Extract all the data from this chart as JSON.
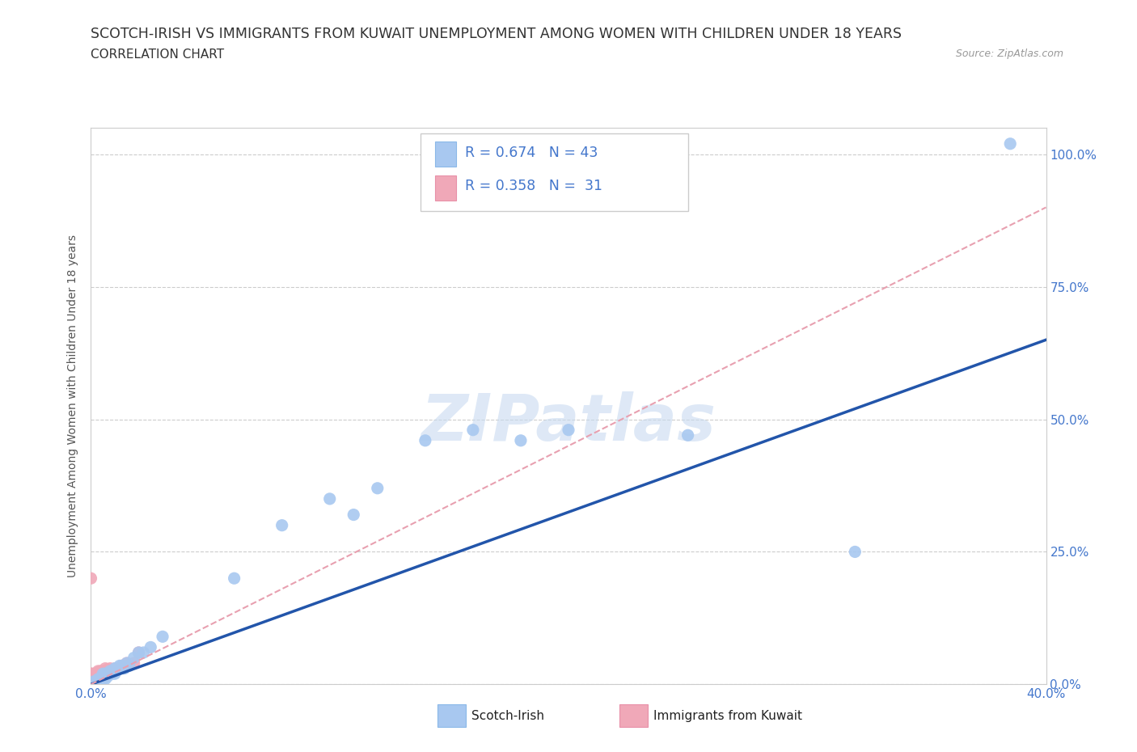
{
  "title_line1": "SCOTCH-IRISH VS IMMIGRANTS FROM KUWAIT UNEMPLOYMENT AMONG WOMEN WITH CHILDREN UNDER 18 YEARS",
  "title_line2": "CORRELATION CHART",
  "source": "Source: ZipAtlas.com",
  "ylabel": "Unemployment Among Women with Children Under 18 years",
  "watermark": "ZIPatlas",
  "xlim": [
    0.0,
    0.4
  ],
  "ylim": [
    0.0,
    1.05
  ],
  "y_tick_positions": [
    0.0,
    0.25,
    0.5,
    0.75,
    1.0
  ],
  "y_tick_labels": [
    "0.0%",
    "25.0%",
    "50.0%",
    "75.0%",
    "100.0%"
  ],
  "x_tick_positions": [
    0.0,
    0.05,
    0.1,
    0.15,
    0.2,
    0.25,
    0.3,
    0.35,
    0.4
  ],
  "x_tick_labels": [
    "0.0%",
    "",
    "",
    "",
    "",
    "",
    "",
    "",
    "40.0%"
  ],
  "scotch_irish_color": "#a8c8f0",
  "kuwait_color": "#f0a8b8",
  "trend_color_scotch": "#2255aa",
  "trend_color_kuwait": "#e8a0b0",
  "grid_color": "#cccccc",
  "background_color": "#ffffff",
  "tick_color": "#4477cc",
  "title_fontsize": 12.5,
  "subtitle_fontsize": 11,
  "axis_label_fontsize": 10,
  "tick_fontsize": 11,
  "legend_R1": "R = 0.674",
  "legend_N1": "N = 43",
  "legend_R2": "R = 0.358",
  "legend_N2": "N =  31",
  "scotch_irish_x": [
    0.001,
    0.002,
    0.003,
    0.003,
    0.004,
    0.004,
    0.005,
    0.005,
    0.005,
    0.006,
    0.006,
    0.006,
    0.007,
    0.007,
    0.008,
    0.008,
    0.009,
    0.009,
    0.01,
    0.01,
    0.011,
    0.012,
    0.013,
    0.014,
    0.015,
    0.016,
    0.018,
    0.02,
    0.022,
    0.025,
    0.03,
    0.06,
    0.08,
    0.1,
    0.11,
    0.12,
    0.14,
    0.16,
    0.18,
    0.2,
    0.25,
    0.32,
    0.385
  ],
  "scotch_irish_y": [
    0.005,
    0.005,
    0.005,
    0.01,
    0.005,
    0.01,
    0.01,
    0.015,
    0.02,
    0.01,
    0.015,
    0.02,
    0.015,
    0.02,
    0.02,
    0.025,
    0.02,
    0.025,
    0.02,
    0.03,
    0.03,
    0.035,
    0.035,
    0.03,
    0.04,
    0.035,
    0.05,
    0.06,
    0.06,
    0.07,
    0.09,
    0.2,
    0.3,
    0.35,
    0.32,
    0.37,
    0.46,
    0.48,
    0.46,
    0.48,
    0.47,
    0.25,
    1.02
  ],
  "kuwait_x": [
    0.0,
    0.0,
    0.0,
    0.0,
    0.0,
    0.0,
    0.0,
    0.0,
    0.0,
    0.0,
    0.0,
    0.0,
    0.0,
    0.001,
    0.001,
    0.001,
    0.002,
    0.002,
    0.002,
    0.003,
    0.003,
    0.004,
    0.005,
    0.006,
    0.007,
    0.008,
    0.01,
    0.013,
    0.015,
    0.018,
    0.02
  ],
  "kuwait_y": [
    0.0,
    0.002,
    0.003,
    0.005,
    0.006,
    0.008,
    0.01,
    0.012,
    0.015,
    0.018,
    0.02,
    0.2,
    0.02,
    0.01,
    0.015,
    0.02,
    0.015,
    0.02,
    0.02,
    0.02,
    0.025,
    0.025,
    0.025,
    0.03,
    0.028,
    0.03,
    0.03,
    0.035,
    0.04,
    0.04,
    0.06
  ],
  "scotch_trend_x0": 0.0,
  "scotch_trend_y0": 0.0,
  "scotch_trend_x1": 0.4,
  "scotch_trend_y1": 0.65,
  "kuwait_trend_x0": 0.0,
  "kuwait_trend_y0": 0.0,
  "kuwait_trend_x1": 0.4,
  "kuwait_trend_y1": 0.9
}
